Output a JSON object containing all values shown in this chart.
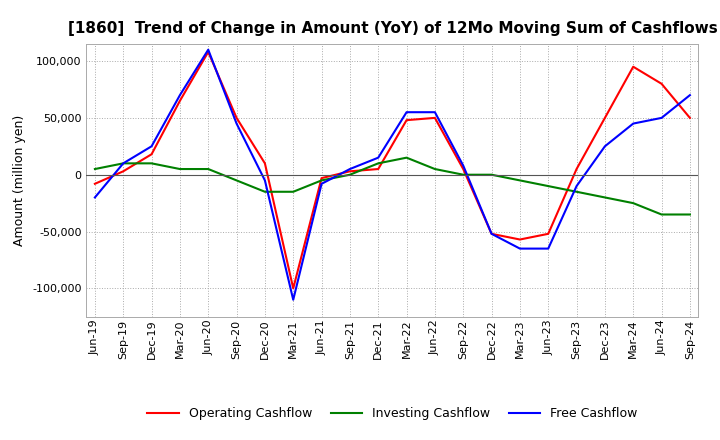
{
  "title": "[1860]  Trend of Change in Amount (YoY) of 12Mo Moving Sum of Cashflows",
  "ylabel": "Amount (million yen)",
  "ylim": [
    -125000,
    115000
  ],
  "yticks": [
    -100000,
    -50000,
    0,
    50000,
    100000
  ],
  "x_labels": [
    "Jun-19",
    "Sep-19",
    "Dec-19",
    "Mar-20",
    "Jun-20",
    "Sep-20",
    "Dec-20",
    "Mar-21",
    "Jun-21",
    "Sep-21",
    "Dec-21",
    "Mar-22",
    "Jun-22",
    "Sep-22",
    "Dec-22",
    "Mar-23",
    "Jun-23",
    "Sep-23",
    "Dec-23",
    "Mar-24",
    "Jun-24",
    "Sep-24"
  ],
  "operating": [
    -8000,
    3000,
    18000,
    65000,
    108000,
    50000,
    10000,
    -100000,
    -3000,
    3000,
    5000,
    48000,
    50000,
    5000,
    -52000,
    -57000,
    -52000,
    5000,
    50000,
    95000,
    80000,
    50000
  ],
  "investing": [
    5000,
    10000,
    10000,
    5000,
    5000,
    -5000,
    -15000,
    -15000,
    -5000,
    0,
    10000,
    15000,
    5000,
    0,
    0,
    -5000,
    -10000,
    -15000,
    -20000,
    -25000,
    -35000,
    -35000
  ],
  "free": [
    -20000,
    10000,
    25000,
    70000,
    110000,
    45000,
    -5000,
    -110000,
    -8000,
    5000,
    15000,
    55000,
    55000,
    8000,
    -52000,
    -65000,
    -65000,
    -10000,
    25000,
    45000,
    50000,
    70000
  ],
  "operating_color": "#ff0000",
  "investing_color": "#008000",
  "free_color": "#0000ff",
  "background_color": "#ffffff",
  "grid_color": "#aaaaaa",
  "title_fontsize": 11,
  "label_fontsize": 9,
  "tick_fontsize": 8,
  "legend_fontsize": 9
}
